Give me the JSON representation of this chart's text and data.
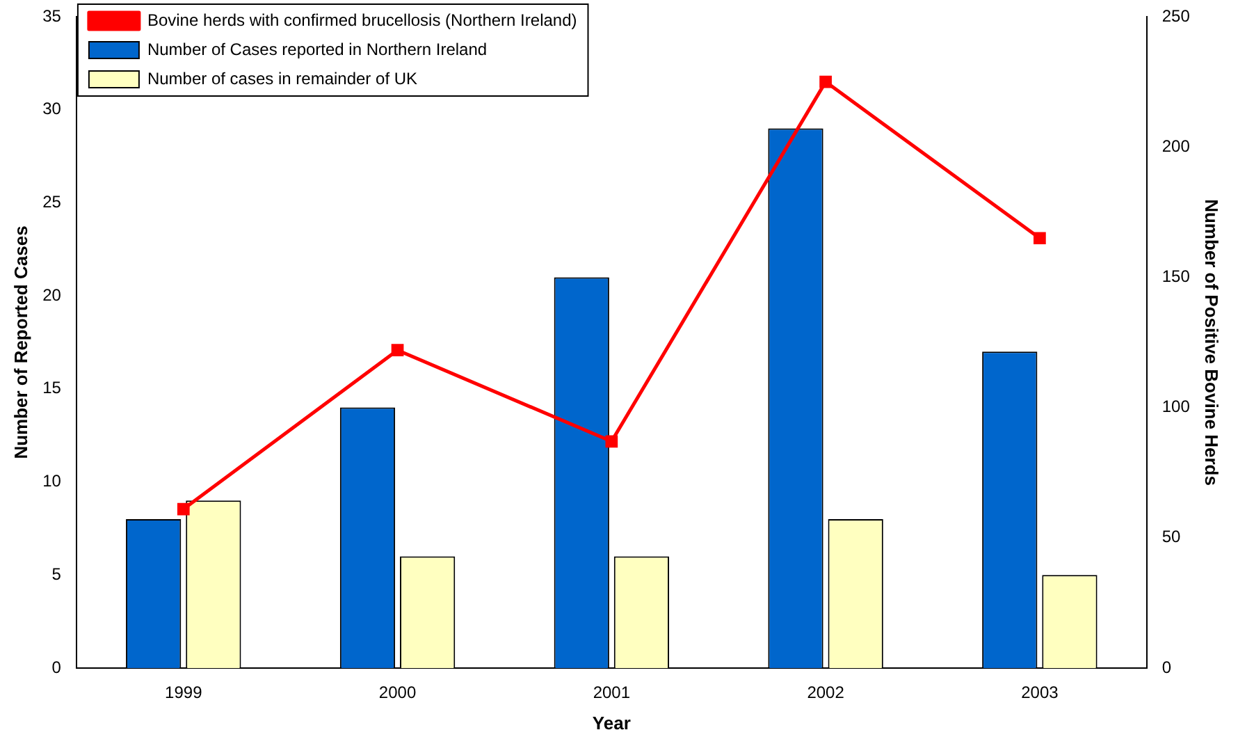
{
  "chart_data": {
    "type": "bar",
    "xlabel": "Year",
    "ylabel": "Number of Reported Cases",
    "y2label": "Number of Positive Bovine Herds",
    "categories": [
      "1999",
      "2000",
      "2001",
      "2002",
      "2003"
    ],
    "series": [
      {
        "name": "Number of Cases reported in Northern Ireland",
        "color": "#0066cc",
        "values": [
          8,
          14,
          21,
          29,
          17
        ]
      },
      {
        "name": "Number of cases in remainder of UK",
        "color": "#ffffc0",
        "values": [
          9,
          6,
          6,
          8,
          5
        ]
      },
      {
        "name": "Bovine herds with confirmed brucellosis (Northern Ireland)",
        "type": "line",
        "axis": "y2",
        "color": "#ff0000",
        "values": [
          61,
          122,
          87,
          225,
          165
        ]
      }
    ],
    "ylim": [
      0,
      35
    ],
    "yticks": [
      0,
      5,
      10,
      15,
      20,
      25,
      30,
      35
    ],
    "y2lim": [
      0,
      250
    ],
    "y2ticks": [
      0,
      50,
      100,
      150,
      200,
      250
    ],
    "grid": false,
    "legend": "top left",
    "marker": "square",
    "line_style": "solid"
  }
}
